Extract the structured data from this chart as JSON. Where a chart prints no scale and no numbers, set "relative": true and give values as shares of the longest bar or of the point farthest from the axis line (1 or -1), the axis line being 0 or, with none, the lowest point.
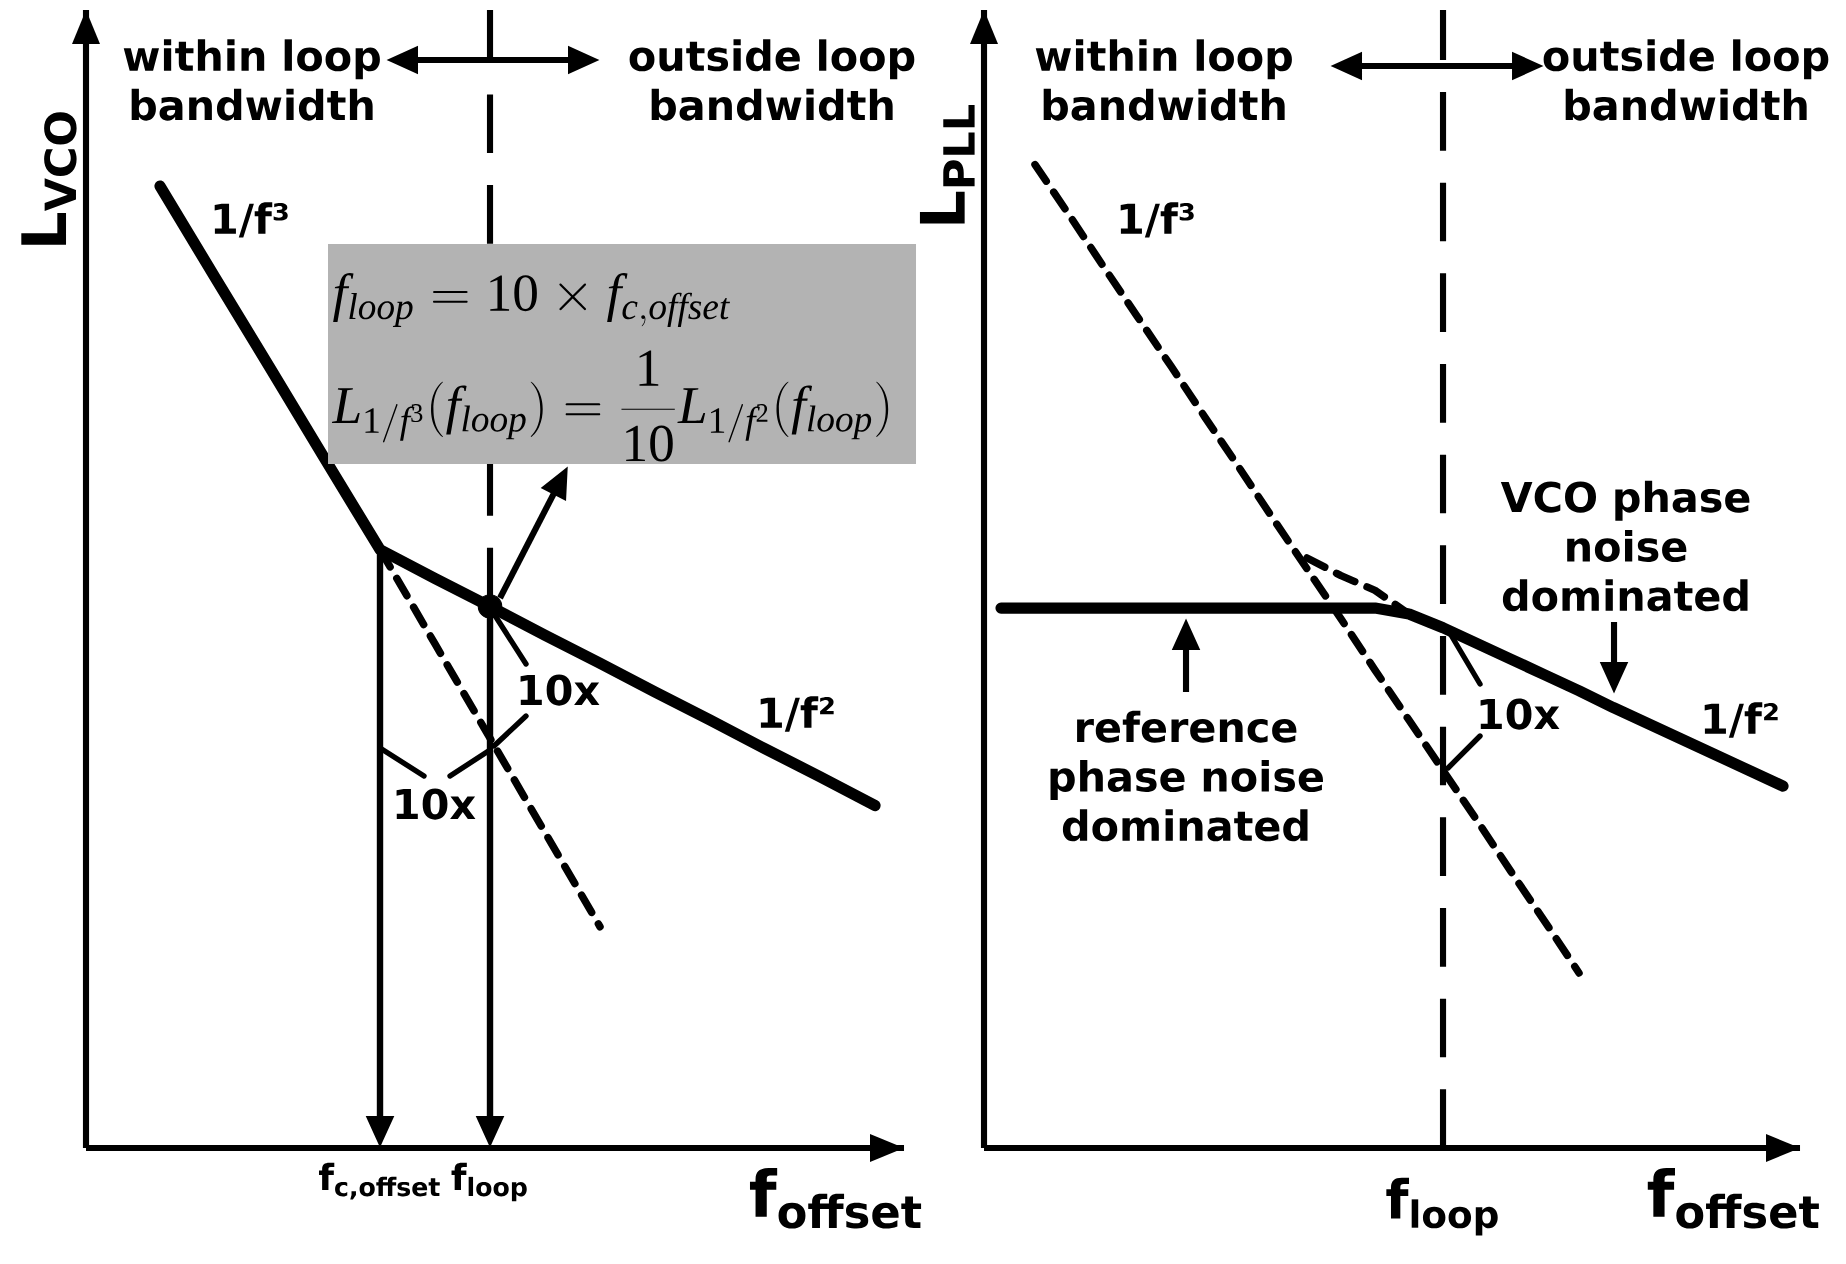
{
  "chart_data": [
    {
      "type": "line",
      "relative": true,
      "xlabel": "f$_{offset}$",
      "ylabel": "L$_{VCO}$",
      "categories": [
        null,
        null,
        null,
        null,
        "f$_{c,offset}$",
        null,
        "f$_{loop}$",
        null,
        null,
        null,
        null,
        null,
        null,
        null
      ],
      "series": [
        {
          "color": "#000000",
          "line_style": "solid",
          "values": [
            1.0,
            0.905,
            0.811,
            0.716,
            0.622,
            0.592,
            0.563,
            0.533,
            0.504,
            0.474,
            0.445,
            0.415,
            0.386,
            0.356
          ]
        },
        {
          "color": "#000000",
          "line_style": "dashed",
          "values": [
            null,
            null,
            null,
            null,
            0.622,
            0.524,
            0.426,
            0.328,
            0.23,
            null,
            null,
            null,
            null,
            null
          ]
        },
        {
          "type": "scatter",
          "color": "#000000",
          "marker": "circle",
          "values": [
            null,
            null,
            null,
            null,
            null,
            null,
            0.563,
            null,
            null,
            null,
            null,
            null,
            null,
            null
          ]
        }
      ],
      "ref_lines": [
        {
          "axis": "x",
          "value": "f$_{loop}$",
          "line_style": "dashed"
        }
      ],
      "annotations": [
        "within loop bandwidth",
        "outside loop bandwidth",
        "1/f³",
        "1/f²",
        "10x",
        "10x",
        "f_{loop}=10\\times f_{c,offset}",
        "L_{1/f^{3}}(f_{loop})=\\frac{1}{10}L_{1/f^{2}}(f_{loop})"
      ]
    },
    {
      "type": "line",
      "relative": true,
      "xlabel": "f$_{offset}$",
      "ylabel": "L$_{PLL}$",
      "categories": [
        null,
        null,
        null,
        null,
        null,
        null,
        null,
        null,
        null,
        null,
        null,
        null,
        null,
        null,
        null,
        null,
        null,
        null,
        null,
        null,
        null,
        null,
        null,
        null
      ],
      "series": [
        {
          "color": "#000000",
          "line_style": "dashed",
          "values": [
            null,
            1.0,
            0.949,
            0.897,
            0.846,
            0.795,
            0.743,
            0.692,
            0.64,
            0.589,
            0.538,
            0.486,
            0.435,
            0.384,
            0.333,
            0.281,
            0.23,
            0.178,
            null,
            null,
            null,
            null,
            null,
            null
          ]
        },
        {
          "color": "#000000",
          "line_style": "dashed",
          "values": [
            null,
            null,
            null,
            null,
            null,
            null,
            null,
            null,
            null,
            0.6,
            0.582,
            0.567,
            0.543,
            null,
            null,
            null,
            null,
            null,
            null,
            null,
            null,
            null,
            null,
            null
          ]
        },
        {
          "color": "#000000",
          "line_style": "solid",
          "values": [
            0.549,
            0.549,
            0.549,
            0.549,
            0.549,
            0.549,
            0.549,
            0.549,
            0.549,
            0.549,
            0.549,
            0.549,
            0.543,
            0.529,
            0.513,
            0.497,
            0.481,
            0.465,
            0.448,
            0.432,
            0.416,
            0.4,
            0.384,
            0.368
          ]
        }
      ],
      "annotations": [
        "within loop bandwidth",
        "outside loop bandwidth",
        "1/f³",
        "1/f²",
        "VCO phase noise dominated",
        "reference phase noise dominated",
        "10x",
        "f$_{loop}$"
      ]
    }
  ]
}
